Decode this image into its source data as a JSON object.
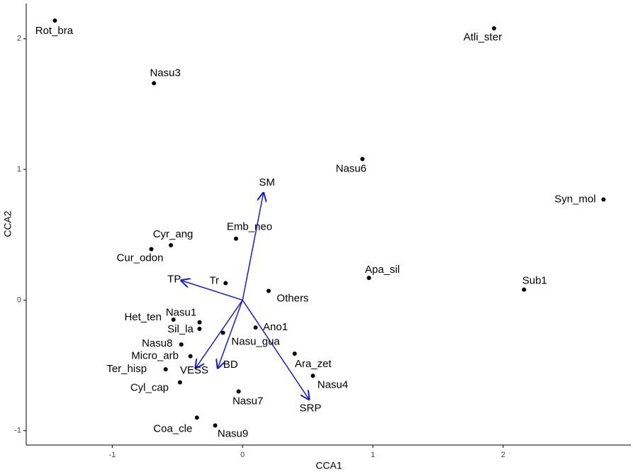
{
  "chart_data": {
    "type": "scatter",
    "xlabel": "CCA1",
    "ylabel": "CCA2",
    "xlim": [
      -1.66,
      2.98
    ],
    "ylim": [
      -1.11,
      2.27
    ],
    "xticks": [
      -1,
      0,
      1,
      2
    ],
    "yticks": [
      -1,
      0,
      1,
      2
    ],
    "grid": false,
    "point_color": "#000000",
    "arrow_color": "#1a1ad8",
    "points": {
      "labels": [
        "Rot_bra",
        "Atli_ster",
        "Nasu3",
        "Nasu6",
        "Syn_mol",
        "Emb_neo",
        "Cyr_ang",
        "Cur_odon",
        "Apa_sil",
        "Sub1",
        "Tr",
        "Others",
        "Het_ten",
        "Nasu1",
        "Sil_la",
        "Ano1",
        "Nasu_gua",
        "Nasu8",
        "Ara_zet",
        "Micro_arb",
        "Ter_hisp",
        "Nasu4",
        "Cyl_cap",
        "Nasu7",
        "Coa_cle",
        "Nasu9"
      ],
      "x": [
        -1.44,
        1.93,
        -0.68,
        0.92,
        2.77,
        -0.05,
        -0.55,
        -0.7,
        0.97,
        2.16,
        -0.13,
        0.2,
        -0.53,
        -0.33,
        -0.33,
        0.1,
        -0.15,
        -0.47,
        0.4,
        -0.4,
        -0.59,
        0.54,
        -0.48,
        -0.03,
        -0.35,
        -0.21
      ],
      "y": [
        2.14,
        2.08,
        1.66,
        1.08,
        0.77,
        0.47,
        0.42,
        0.39,
        0.17,
        0.08,
        0.13,
        0.07,
        -0.15,
        -0.17,
        -0.22,
        -0.21,
        -0.25,
        -0.34,
        -0.41,
        -0.43,
        -0.53,
        -0.58,
        -0.63,
        -0.7,
        -0.9,
        -0.96
      ]
    },
    "arrows": {
      "labels": [
        "SM",
        "TP",
        "VESS",
        "BD",
        "SRP"
      ],
      "x": [
        0.16,
        -0.47,
        -0.36,
        -0.19,
        0.51
      ],
      "y": [
        0.82,
        0.15,
        -0.52,
        -0.52,
        -0.76
      ]
    }
  }
}
